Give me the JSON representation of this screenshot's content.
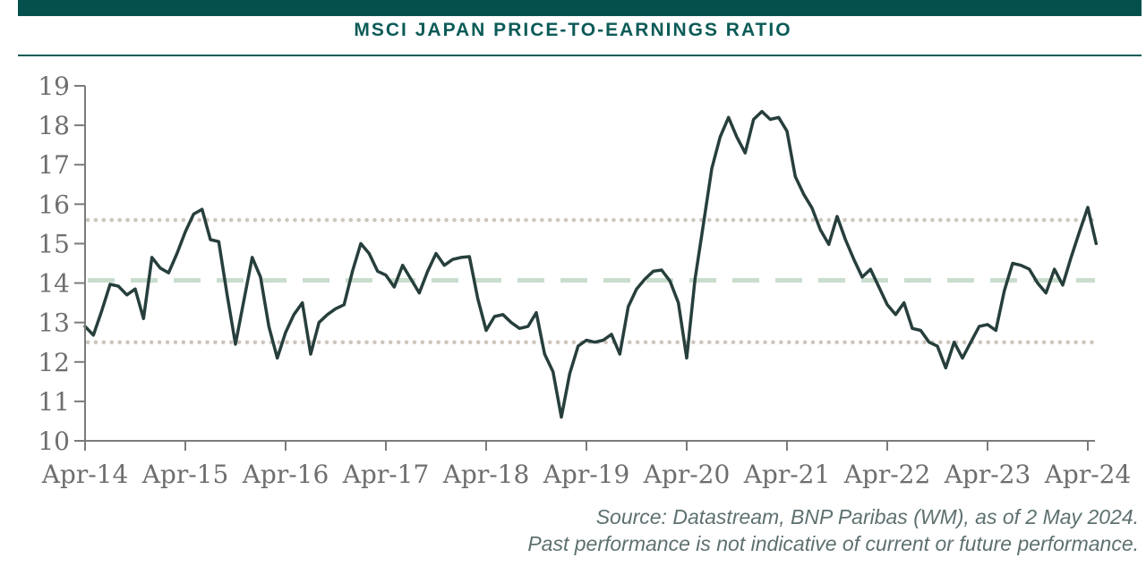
{
  "header": {
    "title": "MSCI JAPAN PRICE-TO-EARNINGS RATIO"
  },
  "footer": {
    "source_line1": "Source: Datastream, BNP Paribas (WM), as of 2 May 2024.",
    "source_line2": "Past performance is not indicative of current or future performance."
  },
  "colors": {
    "accent_teal": "#0B5B57",
    "header_bar_teal": "#04504C",
    "series_line": "#273F3C",
    "average_dashed": "#C9DDCD",
    "band_dotted": "#CDC6BF",
    "axis": "#7B7B7B",
    "axis_labels": "#6E6E6E",
    "footer_text": "#5E7070"
  },
  "chart_data": {
    "type": "line",
    "title": "MSCI JAPAN PRICE-TO-EARNINGS RATIO",
    "xlabel": "",
    "ylabel": "",
    "ylim": [
      10,
      19
    ],
    "y_ticks": [
      10,
      11,
      12,
      13,
      14,
      15,
      16,
      17,
      18,
      19
    ],
    "x_tick_labels": [
      "Apr-14",
      "Apr-15",
      "Apr-16",
      "Apr-17",
      "Apr-18",
      "Apr-19",
      "Apr-20",
      "Apr-21",
      "Apr-22",
      "Apr-23",
      "Apr-24"
    ],
    "x_tick_month_index": [
      0,
      12,
      24,
      36,
      48,
      60,
      72,
      84,
      96,
      108,
      120
    ],
    "grid": false,
    "legend": false,
    "series": [
      {
        "name": "MSCI Japan price-to-earnings ratio",
        "frequency": "monthly",
        "start": "Apr-2014",
        "end": "May-2024",
        "values": [
          12.9,
          12.68,
          13.3,
          13.97,
          13.92,
          13.7,
          13.85,
          13.1,
          14.65,
          14.38,
          14.26,
          14.75,
          15.3,
          15.75,
          15.87,
          15.1,
          15.05,
          13.7,
          12.45,
          13.55,
          14.65,
          14.15,
          12.9,
          12.1,
          12.75,
          13.2,
          13.5,
          12.2,
          13.0,
          13.2,
          13.35,
          13.45,
          14.3,
          15.0,
          14.75,
          14.3,
          14.2,
          13.9,
          14.45,
          14.1,
          13.75,
          14.3,
          14.75,
          14.45,
          14.6,
          14.65,
          14.67,
          13.6,
          12.8,
          13.15,
          13.2,
          13.0,
          12.85,
          12.9,
          13.25,
          12.2,
          11.75,
          10.6,
          11.7,
          12.4,
          12.55,
          12.5,
          12.55,
          12.7,
          12.2,
          13.4,
          13.85,
          14.1,
          14.3,
          14.33,
          14.05,
          13.5,
          12.1,
          14.1,
          15.5,
          16.9,
          17.7,
          18.2,
          17.7,
          17.3,
          18.15,
          18.35,
          18.15,
          18.2,
          17.85,
          16.7,
          16.25,
          15.9,
          15.35,
          14.98,
          15.69,
          15.1,
          14.6,
          14.15,
          14.35,
          13.9,
          13.45,
          13.2,
          13.5,
          12.85,
          12.8,
          12.5,
          12.4,
          11.85,
          12.5,
          12.1,
          12.5,
          12.9,
          12.95,
          12.8,
          13.8,
          14.5,
          14.45,
          14.35,
          14.0,
          13.75,
          14.35,
          13.95,
          14.65,
          15.3,
          15.92,
          15.0
        ]
      }
    ],
    "reference_lines": [
      {
        "name": "average",
        "value": 14.07,
        "style": "dashed"
      },
      {
        "name": "upper-band",
        "value": 15.6,
        "style": "dotted"
      },
      {
        "name": "lower-band",
        "value": 12.5,
        "style": "dotted"
      }
    ]
  }
}
